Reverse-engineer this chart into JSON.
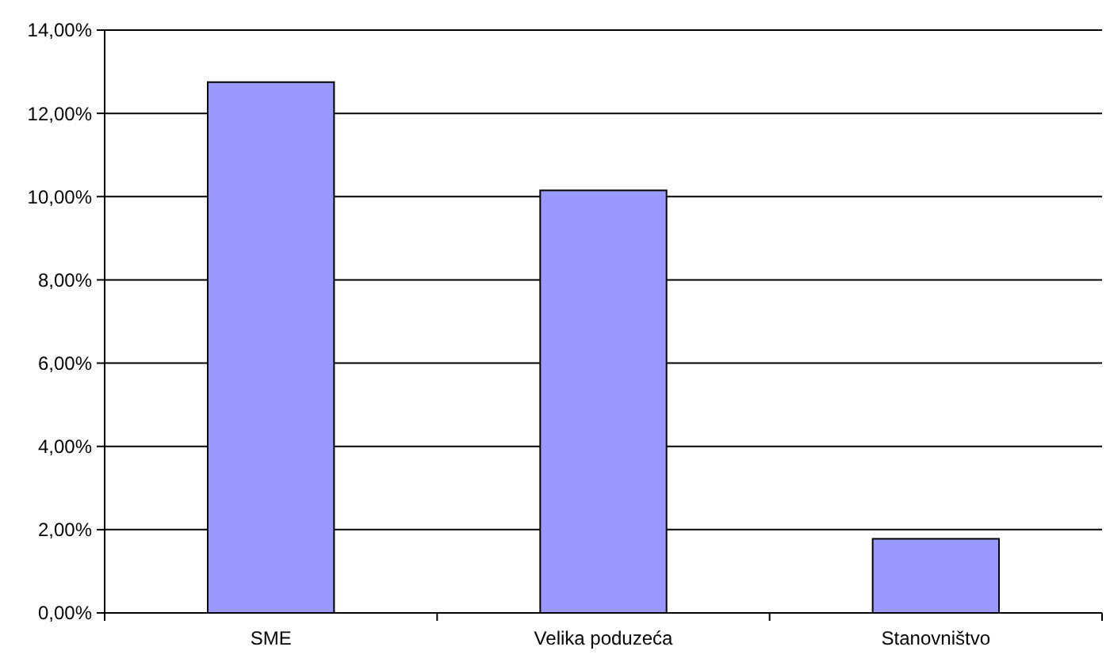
{
  "chart_data": {
    "type": "bar",
    "categories": [
      "SME",
      "Velika poduzeća",
      "Stanovništvo"
    ],
    "values": [
      12.75,
      10.15,
      1.78
    ],
    "color": "#9999ff",
    "ylim": [
      0,
      14
    ],
    "yticks": [
      {
        "value": 0,
        "label": "0,00%"
      },
      {
        "value": 2,
        "label": "2,00%"
      },
      {
        "value": 4,
        "label": "4,00%"
      },
      {
        "value": 6,
        "label": "6,00%"
      },
      {
        "value": 8,
        "label": "8,00%"
      },
      {
        "value": 10,
        "label": "10,00%"
      },
      {
        "value": 12,
        "label": "12,00%"
      },
      {
        "value": 14,
        "label": "14,00%"
      }
    ],
    "grid": "y"
  }
}
